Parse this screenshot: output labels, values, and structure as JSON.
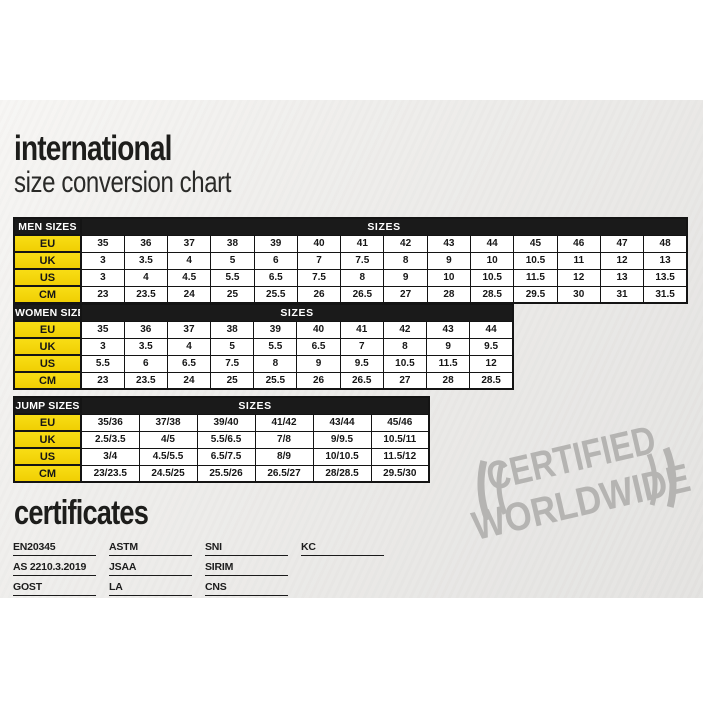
{
  "header": {
    "title": "international",
    "subtitle": "size conversion chart"
  },
  "tables": [
    {
      "corner_label": "MEN SIZES",
      "sizes_label": "SIZES",
      "rows": [
        {
          "label": "EU",
          "values": [
            "35",
            "36",
            "37",
            "38",
            "39",
            "40",
            "41",
            "42",
            "43",
            "44",
            "45",
            "46",
            "47",
            "48"
          ]
        },
        {
          "label": "UK",
          "values": [
            "3",
            "3.5",
            "4",
            "5",
            "6",
            "7",
            "7.5",
            "8",
            "9",
            "10",
            "10.5",
            "11",
            "12",
            "13"
          ]
        },
        {
          "label": "US",
          "values": [
            "3",
            "4",
            "4.5",
            "5.5",
            "6.5",
            "7.5",
            "8",
            "9",
            "10",
            "10.5",
            "11.5",
            "12",
            "13",
            "13.5"
          ]
        },
        {
          "label": "CM",
          "values": [
            "23",
            "23.5",
            "24",
            "25",
            "25.5",
            "26",
            "26.5",
            "27",
            "28",
            "28.5",
            "29.5",
            "30",
            "31",
            "31.5"
          ]
        }
      ]
    },
    {
      "corner_label": "WOMEN SIZES",
      "sizes_label": "SIZES",
      "rows": [
        {
          "label": "EU",
          "values": [
            "35",
            "36",
            "37",
            "38",
            "39",
            "40",
            "41",
            "42",
            "43",
            "44"
          ]
        },
        {
          "label": "UK",
          "values": [
            "3",
            "3.5",
            "4",
            "5",
            "5.5",
            "6.5",
            "7",
            "8",
            "9",
            "9.5"
          ]
        },
        {
          "label": "US",
          "values": [
            "5.5",
            "6",
            "6.5",
            "7.5",
            "8",
            "9",
            "9.5",
            "10.5",
            "11.5",
            "12"
          ]
        },
        {
          "label": "CM",
          "values": [
            "23",
            "23.5",
            "24",
            "25",
            "25.5",
            "26",
            "26.5",
            "27",
            "28",
            "28.5"
          ]
        }
      ]
    },
    {
      "corner_label": "JUMP SIZES",
      "sizes_label": "SIZES",
      "rows": [
        {
          "label": "EU",
          "values": [
            "35/36",
            "37/38",
            "39/40",
            "41/42",
            "43/44",
            "45/46"
          ]
        },
        {
          "label": "UK",
          "values": [
            "2.5/3.5",
            "4/5",
            "5.5/6.5",
            "7/8",
            "9/9.5",
            "10.5/11"
          ]
        },
        {
          "label": "US",
          "values": [
            "3/4",
            "4.5/5.5",
            "6.5/7.5",
            "8/9",
            "10/10.5",
            "11.5/12"
          ]
        },
        {
          "label": "CM",
          "values": [
            "23/23.5",
            "24.5/25",
            "25.5/26",
            "26.5/27",
            "28/28.5",
            "29.5/30"
          ]
        }
      ]
    }
  ],
  "certificates": {
    "title": "certificates",
    "columns": [
      [
        "EN20345",
        "AS 2210.3.2019",
        "GOST"
      ],
      [
        "ASTM",
        "JSAA",
        "LA"
      ],
      [
        "SNI",
        "SIRIM",
        "CNS"
      ],
      [
        "KC"
      ]
    ]
  },
  "stamp": {
    "line1": "CERTIFIED",
    "line2": "WORLDWIDE"
  },
  "colors": {
    "accent_yellow": "#f3d50a",
    "header_black": "#1a1a1a",
    "stamp_gray": "#b5b4b2"
  }
}
